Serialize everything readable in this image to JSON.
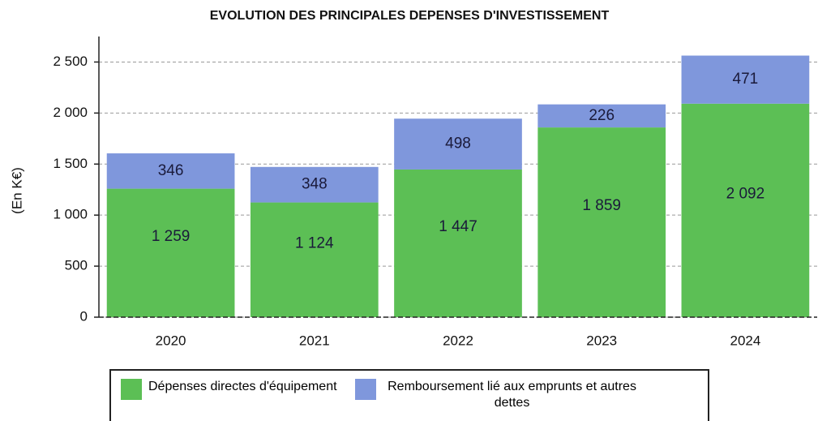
{
  "chart_data": {
    "type": "stacked_bar",
    "title": "EVOLUTION DES PRINCIPALES DEPENSES D'INVESTISSEMENT",
    "ylabel": "(En K€)",
    "categories": [
      "2020",
      "2021",
      "2022",
      "2023",
      "2024"
    ],
    "series": [
      {
        "name": "Dépenses directes d'équipement",
        "color": "#5cbf55",
        "values": [
          1259,
          1124,
          1447,
          1859,
          2092
        ],
        "value_labels": [
          "1 259",
          "1 124",
          "1 447",
          "1 859",
          "2 092"
        ]
      },
      {
        "name": "Remboursement lié aux emprunts et autres dettes",
        "color": "#7f97dc",
        "values": [
          346,
          348,
          498,
          226,
          471
        ]
      }
    ],
    "ylim": [
      0,
      2750
    ],
    "yticks": [
      0,
      500,
      {
        "value": 1000,
        "label": "1 000"
      },
      {
        "value": 1500,
        "label": "1 500"
      },
      {
        "value": 2000,
        "label": "2 000"
      },
      {
        "value": 2500,
        "label": "2 500"
      }
    ],
    "grid": true,
    "legend": "bottom"
  }
}
